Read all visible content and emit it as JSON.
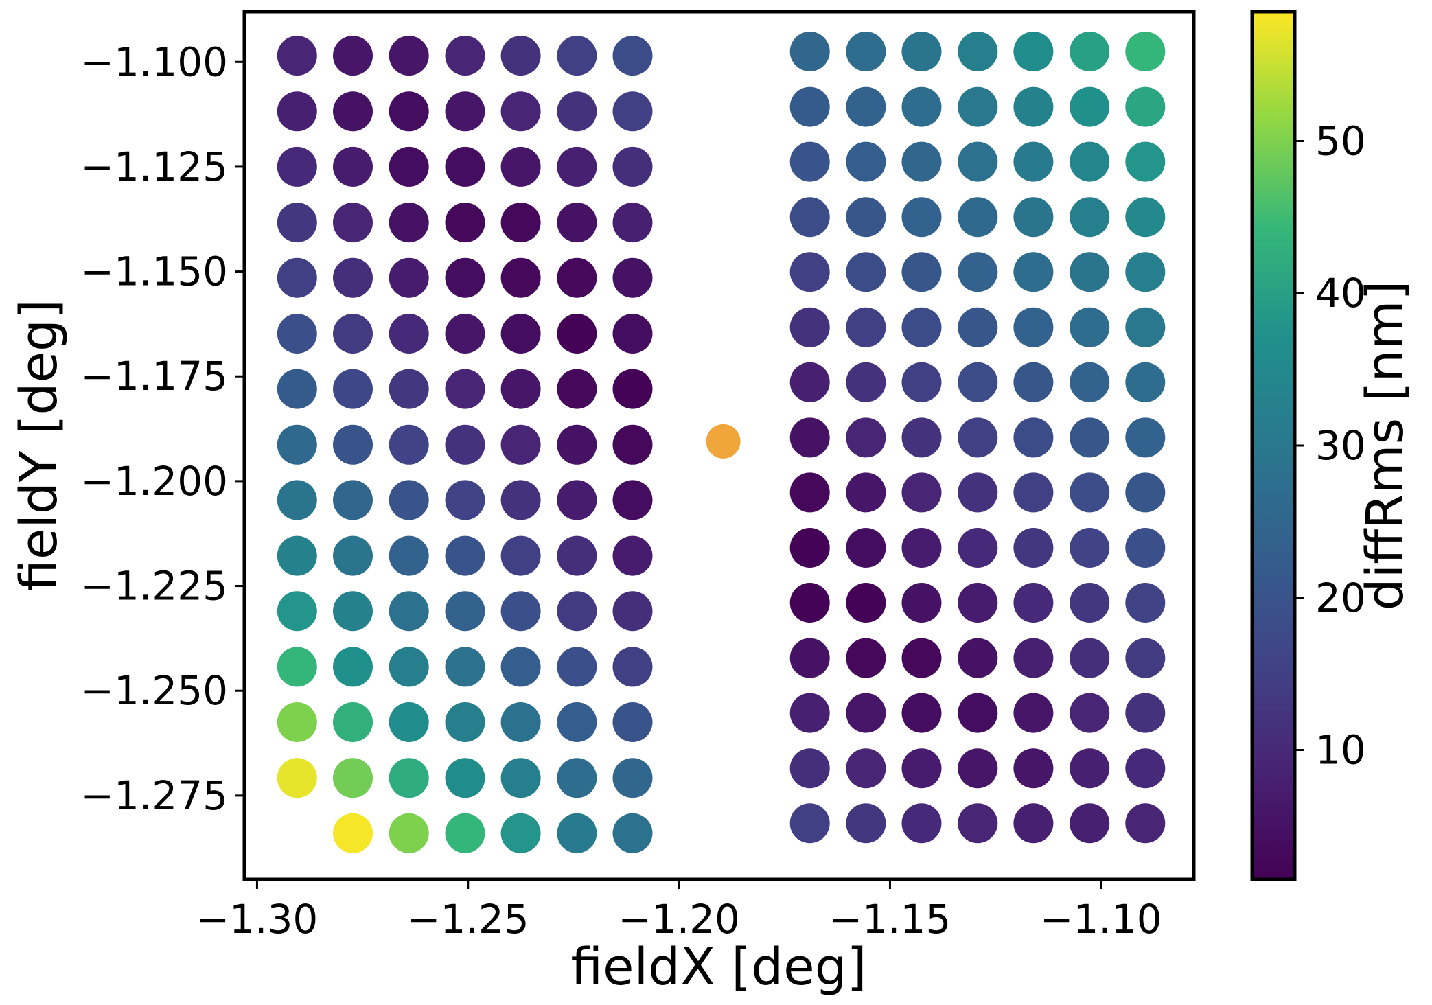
{
  "chart_data": {
    "type": "scatter",
    "xlabel": "fieldX [deg]",
    "ylabel": "fieldY [deg]",
    "xlim": [
      -1.303,
      -1.078
    ],
    "ylim": [
      -1.295,
      -1.088
    ],
    "xticks": [
      -1.3,
      -1.25,
      -1.2,
      -1.15,
      -1.1
    ],
    "xtick_labels": [
      "−1.30",
      "−1.25",
      "−1.20",
      "−1.15",
      "−1.10"
    ],
    "yticks": [
      -1.1,
      -1.125,
      -1.15,
      -1.175,
      -1.2,
      -1.225,
      -1.25,
      -1.275
    ],
    "ytick_labels": [
      "−1.100",
      "−1.125",
      "−1.150",
      "−1.175",
      "−1.200",
      "−1.225",
      "−1.250",
      "−1.275"
    ],
    "colormap": "viridis",
    "colorbar": {
      "label": "diffRms [nm]",
      "range": [
        1.5,
        58.5
      ],
      "ticks": [
        10,
        20,
        30,
        40,
        50
      ],
      "tick_labels": [
        "10",
        "20",
        "30",
        "40",
        "50"
      ]
    },
    "marked_point": {
      "x": -1.1895,
      "y": -1.1905,
      "color": "#f0a63a"
    },
    "left_grid": {
      "x": [
        -1.2905,
        -1.2773,
        -1.264,
        -1.2507,
        -1.2375,
        -1.2242,
        -1.211
      ],
      "y": [
        -1.0985,
        -1.1118,
        -1.125,
        -1.1383,
        -1.1515,
        -1.1648,
        -1.178,
        -1.1913,
        -1.2045,
        -1.2178,
        -1.231,
        -1.2443,
        -1.2575,
        -1.2708,
        -1.284
      ],
      "values": [
        [
          9,
          6,
          6,
          9,
          12,
          15,
          18
        ],
        [
          8,
          5,
          4,
          6,
          9,
          12,
          15
        ],
        [
          10,
          7,
          4,
          4,
          6,
          8,
          11
        ],
        [
          13,
          9,
          5,
          3,
          3,
          5,
          8
        ],
        [
          15,
          11,
          7,
          4,
          3,
          3,
          5
        ],
        [
          19,
          14,
          10,
          6,
          4,
          2,
          4
        ],
        [
          22,
          17,
          13,
          9,
          6,
          3,
          2
        ],
        [
          26,
          20,
          16,
          12,
          9,
          5,
          3
        ],
        [
          29,
          25,
          20,
          16,
          12,
          7,
          4
        ],
        [
          33,
          29,
          24,
          20,
          15,
          11,
          7
        ],
        [
          38,
          33,
          28,
          24,
          19,
          14,
          11
        ],
        [
          44,
          37,
          32,
          28,
          23,
          19,
          15
        ],
        [
          50,
          43,
          36,
          32,
          28,
          23,
          20
        ],
        [
          57,
          49,
          42,
          36,
          32,
          27,
          25
        ],
        [
          null,
          58,
          50,
          44,
          38,
          31,
          28
        ]
      ]
    },
    "right_grid": {
      "x": [
        -1.169,
        -1.1557,
        -1.1425,
        -1.1292,
        -1.116,
        -1.1027,
        -1.0895
      ],
      "y": [
        -1.0975,
        -1.1107,
        -1.1238,
        -1.137,
        -1.1501,
        -1.1633,
        -1.1764,
        -1.1896,
        -1.2027,
        -1.2159,
        -1.229,
        -1.2422,
        -1.2553,
        -1.2685,
        -1.2816
      ],
      "values": [
        [
          25,
          27,
          29,
          32,
          36,
          40,
          44
        ],
        [
          22,
          24,
          27,
          30,
          33,
          37,
          41
        ],
        [
          20,
          23,
          25,
          28,
          31,
          34,
          38
        ],
        [
          18,
          21,
          24,
          26,
          29,
          32,
          35
        ],
        [
          15,
          18,
          21,
          24,
          27,
          29,
          32
        ],
        [
          12,
          15,
          18,
          21,
          24,
          27,
          30
        ],
        [
          8,
          12,
          15,
          18,
          21,
          24,
          27
        ],
        [
          5,
          9,
          12,
          15,
          18,
          21,
          24
        ],
        [
          3,
          6,
          9,
          12,
          15,
          18,
          21
        ],
        [
          2,
          4,
          7,
          10,
          13,
          16,
          19
        ],
        [
          2,
          2,
          5,
          7,
          10,
          13,
          16
        ],
        [
          5,
          3,
          3,
          5,
          8,
          11,
          14
        ],
        [
          8,
          6,
          4,
          4,
          6,
          9,
          12
        ],
        [
          11,
          9,
          7,
          6,
          6,
          8,
          10
        ],
        [
          15,
          13,
          10,
          9,
          8,
          8,
          9
        ]
      ]
    }
  }
}
